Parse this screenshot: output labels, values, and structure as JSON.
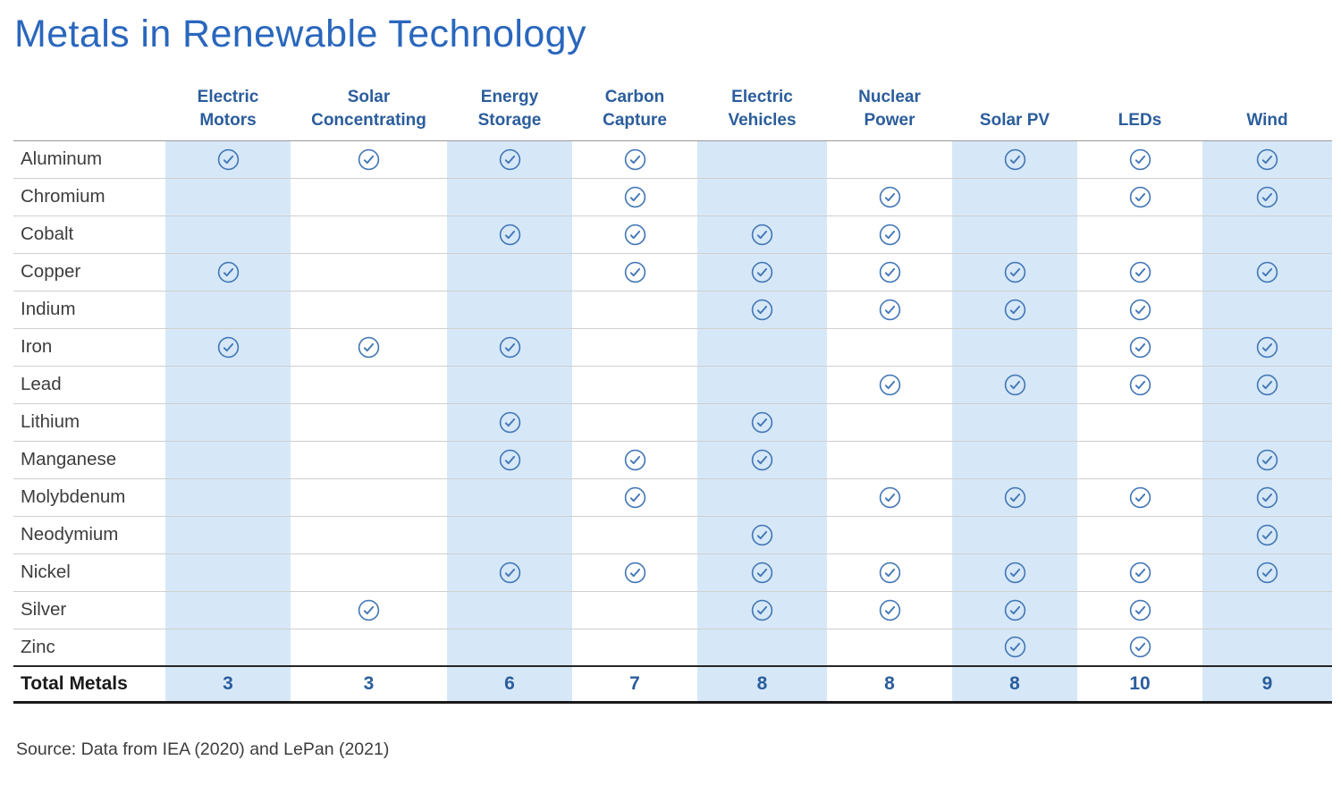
{
  "chart_data": {
    "type": "table",
    "title": "Metals in Renewable Technology",
    "columns": [
      "Electric Motors",
      "Solar Concentrating",
      "Energy Storage",
      "Carbon Capture",
      "Electric Vehicles",
      "Nuclear Power",
      "Solar PV",
      "LEDs",
      "Wind"
    ],
    "rows": [
      {
        "metal": "Aluminum",
        "uses": [
          1,
          1,
          1,
          1,
          0,
          0,
          1,
          1,
          1
        ]
      },
      {
        "metal": "Chromium",
        "uses": [
          0,
          0,
          0,
          1,
          0,
          1,
          0,
          1,
          1
        ]
      },
      {
        "metal": "Cobalt",
        "uses": [
          0,
          0,
          1,
          1,
          1,
          1,
          0,
          0,
          0
        ]
      },
      {
        "metal": "Copper",
        "uses": [
          1,
          0,
          0,
          1,
          1,
          1,
          1,
          1,
          1
        ]
      },
      {
        "metal": "Indium",
        "uses": [
          0,
          0,
          0,
          0,
          1,
          1,
          1,
          1,
          0
        ]
      },
      {
        "metal": "Iron",
        "uses": [
          1,
          1,
          1,
          0,
          0,
          0,
          0,
          1,
          1
        ]
      },
      {
        "metal": "Lead",
        "uses": [
          0,
          0,
          0,
          0,
          0,
          1,
          1,
          1,
          1
        ]
      },
      {
        "metal": "Lithium",
        "uses": [
          0,
          0,
          1,
          0,
          1,
          0,
          0,
          0,
          0
        ]
      },
      {
        "metal": "Manganese",
        "uses": [
          0,
          0,
          1,
          1,
          1,
          0,
          0,
          0,
          1
        ]
      },
      {
        "metal": "Molybdenum",
        "uses": [
          0,
          0,
          0,
          1,
          0,
          1,
          1,
          1,
          1
        ]
      },
      {
        "metal": "Neodymium",
        "uses": [
          0,
          0,
          0,
          0,
          1,
          0,
          0,
          0,
          1
        ]
      },
      {
        "metal": "Nickel",
        "uses": [
          0,
          0,
          1,
          1,
          1,
          1,
          1,
          1,
          1
        ]
      },
      {
        "metal": "Silver",
        "uses": [
          0,
          1,
          0,
          0,
          1,
          1,
          1,
          1,
          0
        ]
      },
      {
        "metal": "Zinc",
        "uses": [
          0,
          0,
          0,
          0,
          0,
          0,
          1,
          1,
          0
        ]
      }
    ],
    "total_label": "Total Metals",
    "totals": [
      3,
      3,
      6,
      7,
      8,
      8,
      8,
      10,
      9
    ],
    "check_icon": "circled-checkmark",
    "legend_position": "none",
    "grid": "row-separators",
    "source": "Source: Data from IEA (2020) and LePan (2021)"
  },
  "colors": {
    "title_blue": "#2a67bd",
    "header_blue": "#2b5d9c",
    "check_blue": "#4377b6",
    "stripe_blue": "#d6e8f8",
    "metal_text": "#3d3d3d",
    "total_blue": "#2b5d9c"
  }
}
